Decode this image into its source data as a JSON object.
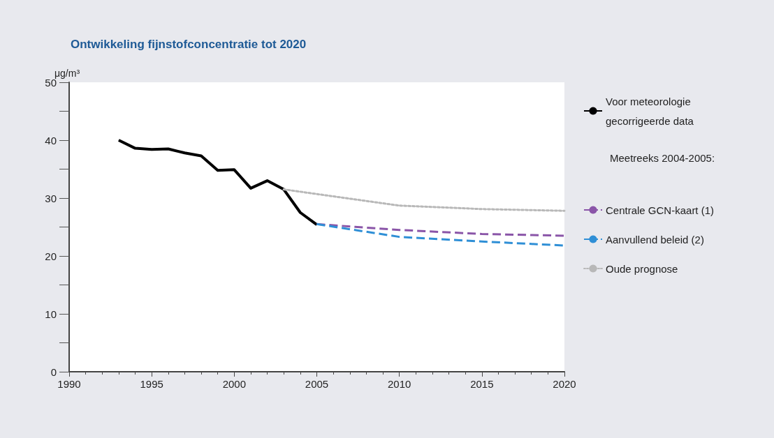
{
  "chart_data": {
    "type": "line",
    "title": "Ontwikkeling fijnstofconcentratie tot 2020",
    "ylabel": "μg/m³",
    "legend_title": "Meetreeks 2004-2005:",
    "xlim": [
      1990,
      2020
    ],
    "xticks": [
      1990,
      1995,
      2000,
      2005,
      2010,
      2015,
      2020
    ],
    "ylim": [
      0,
      50
    ],
    "yticks": [
      0,
      {
        "value": 5,
        "label": null
      },
      10,
      {
        "value": 15,
        "label": null
      },
      20,
      {
        "value": 25,
        "label": null
      },
      30,
      {
        "value": 35,
        "label": null
      },
      40,
      {
        "value": 45,
        "label": null
      },
      50
    ],
    "grid": false,
    "legend": "right",
    "marker": "none",
    "series": [
      {
        "name": "Voor meteorologie gecorrigeerde data",
        "color": "#000000",
        "line_style": "solid",
        "x": [
          1993,
          1994,
          1995,
          1996,
          1997,
          1998,
          1999,
          2000,
          2001,
          2002,
          2003,
          2004,
          2005
        ],
        "values": [
          40,
          38.6,
          38.4,
          38.5,
          37.8,
          37.3,
          34.8,
          34.9,
          31.7,
          33.0,
          31.5,
          27.5,
          25.4
        ]
      },
      {
        "name": "Centrale GCN-kaart (1)",
        "color": "#8a55a8",
        "line_style": "dashed",
        "x": [
          2005,
          2010,
          2015,
          2020
        ],
        "values": [
          25.5,
          24.5,
          23.8,
          23.5
        ]
      },
      {
        "name": "Aanvullend beleid (2)",
        "color": "#2f8fd6",
        "line_style": "dashed",
        "x": [
          2005,
          2010,
          2015,
          2020
        ],
        "values": [
          25.5,
          23.3,
          22.5,
          21.8
        ]
      },
      {
        "name": "Oude prognose",
        "color": "#b8b8b8",
        "line_style": "dotted",
        "x": [
          2003,
          2004,
          2010,
          2015,
          2020
        ],
        "values": [
          31.5,
          31.1,
          28.7,
          28.1,
          27.8
        ]
      }
    ]
  }
}
